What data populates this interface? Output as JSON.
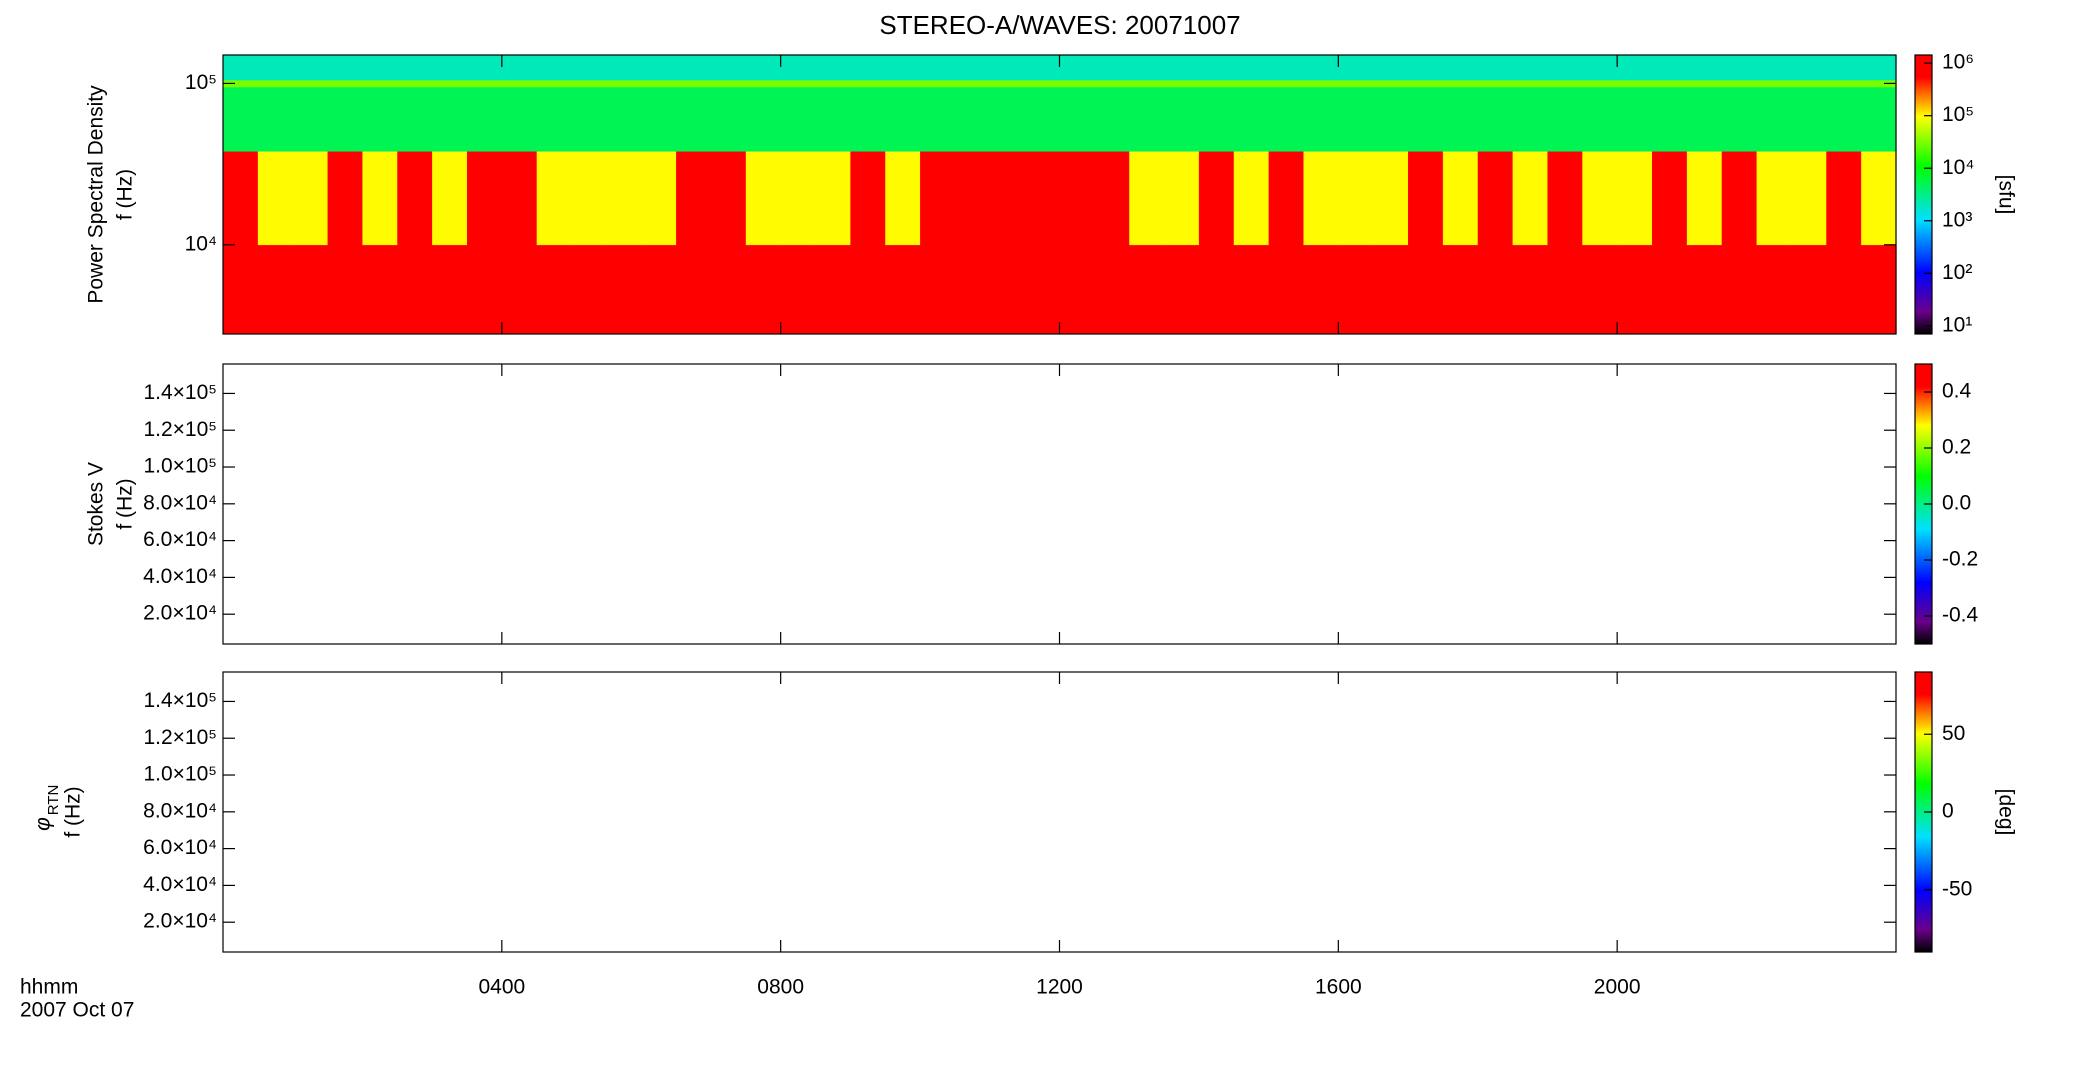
{
  "chart_data": [
    {
      "type": "heatmap",
      "title": "STEREO-A/WAVES: 20071007",
      "ylabel": [
        "Power Spectral Density",
        "f (Hz)"
      ],
      "xlim": [
        0,
        24
      ],
      "ylim": [
        2800,
        150000
      ],
      "ylog": true,
      "yticks": [
        {
          "value": 10000,
          "label": "10⁴"
        },
        {
          "value": 100000,
          "label": "10⁵"
        }
      ],
      "x_edges": [
        0,
        0.5,
        1,
        1.5,
        2,
        2.5,
        3,
        3.5,
        4,
        4.5,
        5,
        5.5,
        6,
        6.5,
        7,
        7.5,
        8,
        8.5,
        9,
        9.5,
        10,
        10.5,
        11,
        11.5,
        12,
        12.5,
        13,
        13.5,
        14,
        14.5,
        15,
        15.5,
        16,
        16.5,
        17,
        17.5,
        18,
        18.5,
        19,
        19.5,
        20,
        20.5,
        21,
        21.5,
        22,
        22.5,
        23,
        23.5,
        24
      ],
      "y_edges": [
        2800,
        10000,
        38000,
        95000,
        105000,
        150000
      ],
      "z": [
        [
          800000,
          800000,
          800000,
          800000,
          800000,
          800000,
          800000,
          800000,
          800000,
          800000,
          800000,
          800000,
          800000,
          800000,
          800000,
          800000,
          800000,
          800000,
          800000,
          800000,
          800000,
          800000,
          800000,
          800000,
          800000,
          800000,
          800000,
          800000,
          800000,
          800000,
          800000,
          800000,
          800000,
          800000,
          800000,
          800000,
          800000,
          800000,
          800000,
          800000,
          800000,
          800000,
          800000,
          800000,
          800000,
          800000,
          800000,
          800000
        ],
        [
          800000,
          100000,
          100000,
          800000,
          100000,
          800000,
          100000,
          800000,
          800000,
          100000,
          100000,
          100000,
          100000,
          800000,
          800000,
          100000,
          100000,
          100000,
          800000,
          100000,
          800000,
          800000,
          800000,
          800000,
          800000,
          800000,
          100000,
          100000,
          800000,
          100000,
          800000,
          100000,
          100000,
          100000,
          800000,
          100000,
          800000,
          100000,
          800000,
          100000,
          100000,
          800000,
          100000,
          800000,
          100000,
          100000,
          800000,
          100000
        ],
        [
          5000,
          5000,
          5000,
          5000,
          5000,
          5000,
          5000,
          5000,
          5000,
          5000,
          5000,
          5000,
          5000,
          5000,
          5000,
          5000,
          5000,
          5000,
          5000,
          5000,
          5000,
          5000,
          5000,
          5000,
          5000,
          5000,
          5000,
          5000,
          5000,
          5000,
          5000,
          5000,
          5000,
          5000,
          5000,
          5000,
          5000,
          5000,
          5000,
          5000,
          5000,
          5000,
          5000,
          5000,
          5000,
          5000,
          5000,
          5000
        ],
        [
          30000,
          30000,
          30000,
          30000,
          30000,
          30000,
          30000,
          30000,
          30000,
          30000,
          30000,
          30000,
          30000,
          30000,
          30000,
          30000,
          30000,
          30000,
          30000,
          30000,
          30000,
          30000,
          30000,
          30000,
          30000,
          30000,
          30000,
          30000,
          30000,
          30000,
          30000,
          30000,
          30000,
          30000,
          30000,
          30000,
          30000,
          30000,
          30000,
          30000,
          30000,
          30000,
          30000,
          30000,
          30000,
          30000,
          30000,
          30000
        ],
        [
          2000,
          2000,
          2000,
          2000,
          2000,
          2000,
          2000,
          2000,
          2000,
          2000,
          2000,
          2000,
          2000,
          2000,
          2000,
          2000,
          2000,
          2000,
          2000,
          2000,
          2000,
          2000,
          2000,
          2000,
          2000,
          2000,
          2000,
          2000,
          2000,
          2000,
          2000,
          2000,
          2000,
          2000,
          2000,
          2000,
          2000,
          2000,
          2000,
          2000,
          2000,
          2000,
          2000,
          2000,
          2000,
          2000,
          2000,
          2000
        ]
      ],
      "clim": [
        7,
        1430000
      ],
      "clog": true,
      "cticks": [
        {
          "value": 10,
          "label": "10¹"
        },
        {
          "value": 100,
          "label": "10²"
        },
        {
          "value": 1000,
          "label": "10³"
        },
        {
          "value": 10000,
          "label": "10⁴"
        },
        {
          "value": 100000,
          "label": "10⁵"
        },
        {
          "value": 1000000,
          "label": "10⁶"
        }
      ],
      "clabel": "[sfu]"
    },
    {
      "type": "heatmap",
      "ylabel": [
        "Stokes V",
        "f (Hz)"
      ],
      "xlim": [
        0,
        24
      ],
      "ylim": [
        3800,
        156000
      ],
      "yticks": [
        {
          "value": 20000,
          "label": "2.0×10⁴"
        },
        {
          "value": 40000,
          "label": "4.0×10⁴"
        },
        {
          "value": 60000,
          "label": "6.0×10⁴"
        },
        {
          "value": 80000,
          "label": "8.0×10⁴"
        },
        {
          "value": 100000,
          "label": "1.0×10⁵"
        },
        {
          "value": 120000,
          "label": "1.2×10⁵"
        },
        {
          "value": 140000,
          "label": "1.4×10⁵"
        }
      ],
      "clim": [
        -0.5,
        0.5
      ],
      "cticks": [
        -0.4,
        -0.2,
        {
          "value": 0,
          "label": "0.0"
        },
        0.2,
        0.4
      ]
    },
    {
      "type": "heatmap",
      "ylabel_symbol": "φ",
      "ylabel_subscript": "RTN",
      "ylabel": [
        "f (Hz)"
      ],
      "xlim": [
        0,
        24
      ],
      "ylim": [
        3800,
        156000
      ],
      "yticks": [
        {
          "value": 20000,
          "label": "2.0×10⁴"
        },
        {
          "value": 40000,
          "label": "4.0×10⁴"
        },
        {
          "value": 60000,
          "label": "6.0×10⁴"
        },
        {
          "value": 80000,
          "label": "8.0×10⁴"
        },
        {
          "value": 100000,
          "label": "1.0×10⁵"
        },
        {
          "value": 120000,
          "label": "1.2×10⁵"
        },
        {
          "value": 140000,
          "label": "1.4×10⁵"
        }
      ],
      "xticks": [
        {
          "value": 4,
          "label": "0400"
        },
        {
          "value": 8,
          "label": "0800"
        },
        {
          "value": 12,
          "label": "1200"
        },
        {
          "value": 16,
          "label": "1600"
        },
        {
          "value": 20,
          "label": "2000"
        }
      ],
      "xlabel": [
        "hhmm",
        "2007 Oct 07"
      ],
      "clim": [
        -90,
        90
      ],
      "cticks": [
        -50,
        0,
        50
      ],
      "clabel": "[deg]"
    }
  ]
}
